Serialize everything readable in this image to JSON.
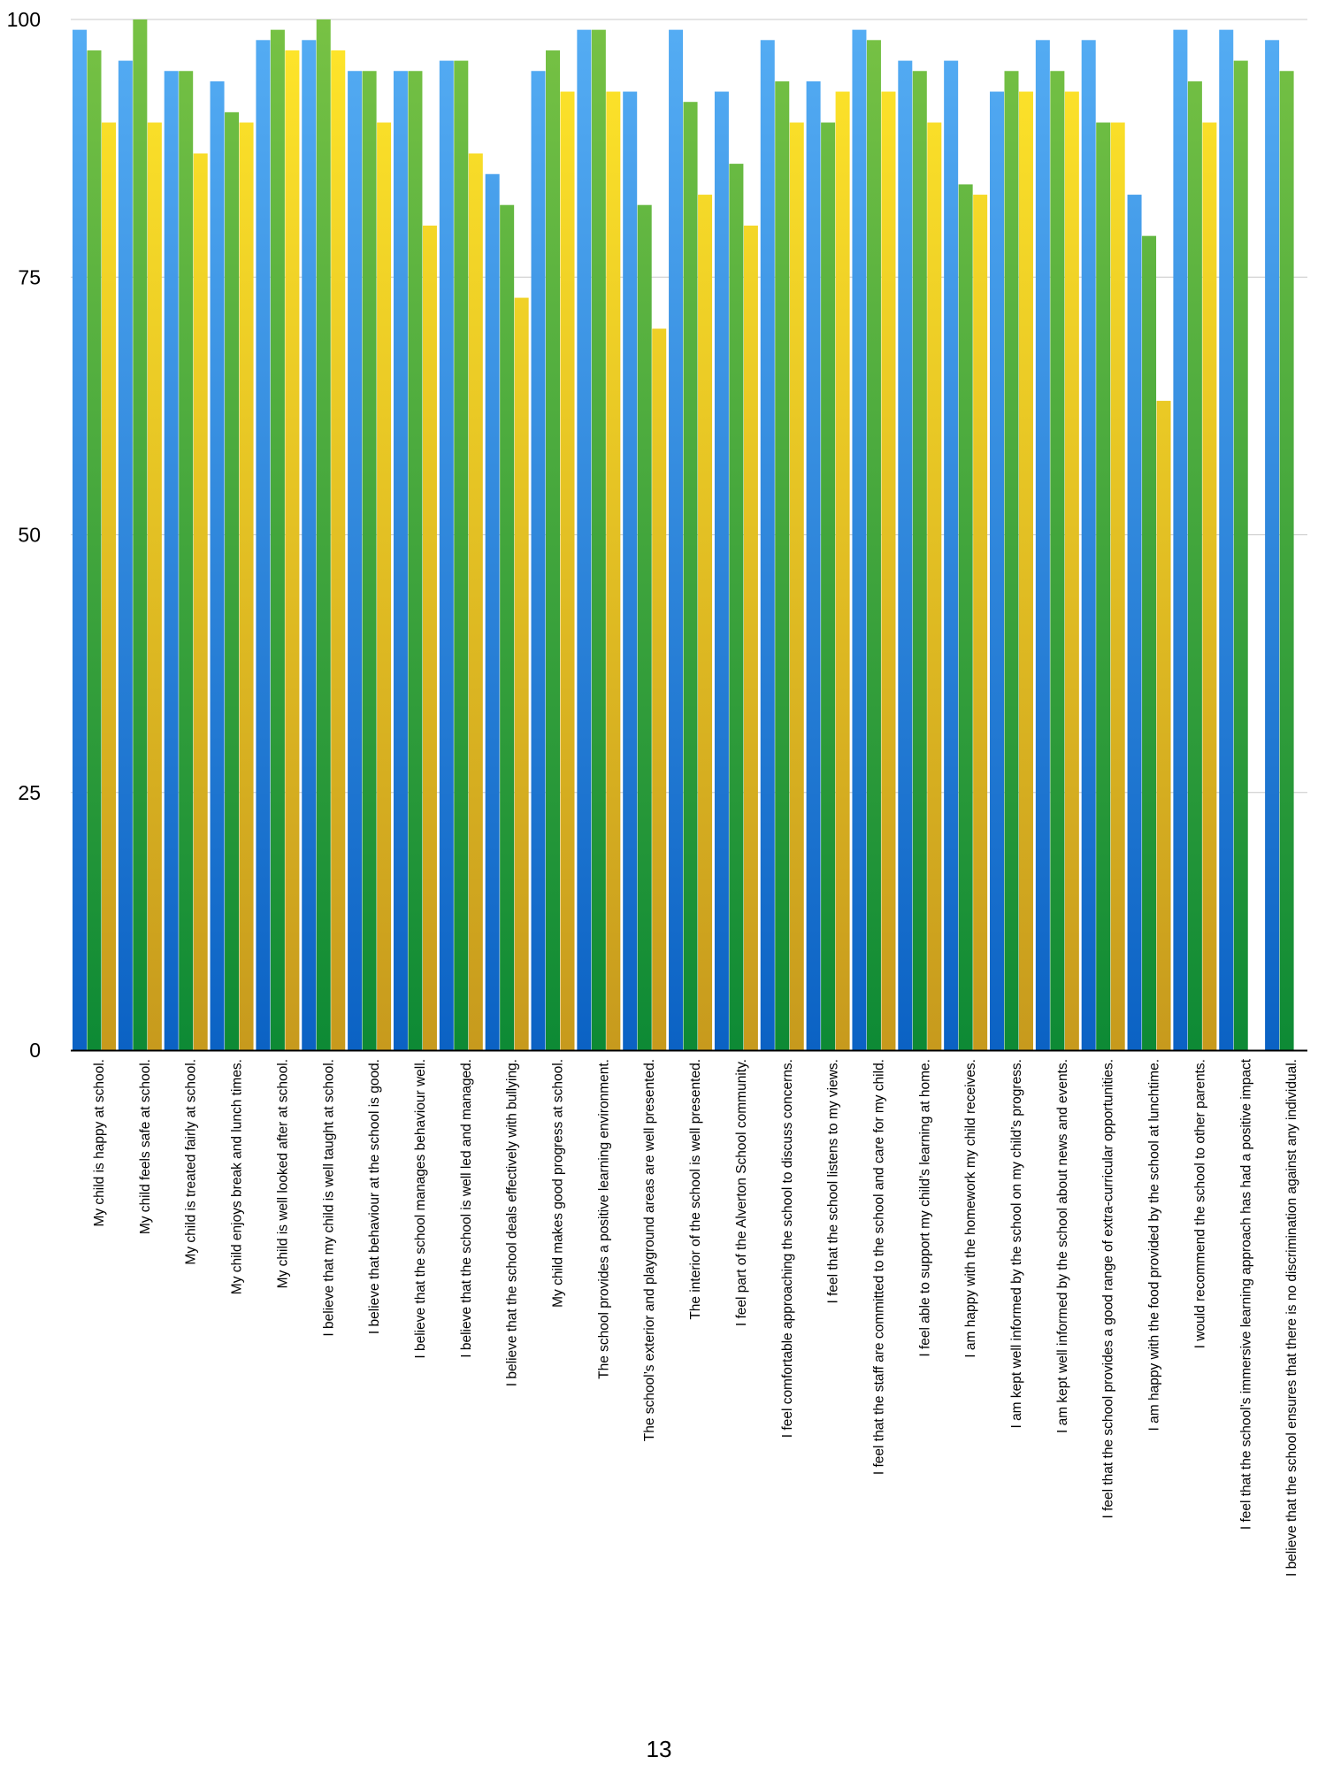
{
  "page": {
    "number": "13"
  },
  "chart_data": {
    "type": "bar",
    "title": "",
    "xlabel": "",
    "ylabel": "",
    "ylim": [
      0,
      100
    ],
    "yticks": [
      0,
      25,
      50,
      75,
      100
    ],
    "grid": true,
    "legend": "none",
    "categories": [
      "My child is happy at school.",
      "My child feels safe at school.",
      "My child is treated fairly at school.",
      "My child enjoys break and lunch times.",
      "My child is well looked after at school.",
      "I believe that my child is well taught at school.",
      "I believe that behaviour at the school is good.",
      "I believe that the school manages behaviour well.",
      "I believe that the school is well led and managed.",
      "I believe that the school deals effectively with bullying.",
      "My child makes good progress at school.",
      "The school provides a positive learning environment.",
      "The school’s exterior and playground areas are well presented.",
      "The interior of the school is well presented.",
      "I feel part of the Alverton School community.",
      "I feel comfortable approaching the school to discuss concerns.",
      "I feel that the school listens to my views.",
      "I feel that the staff are committed to the school and care for my child.",
      "I feel able to support my child’s learning at home.",
      "I am happy with the homework my child receives.",
      "I am kept well informed by the school on my child’s progress.",
      "I am kept well informed by the school about news and events.",
      "I feel that the school provides a good range of extra-curricular opportunities.",
      "I am happy with the food provided by the school at lunchtime.",
      "I would recommend the school to other parents.",
      "I feel that the school’s immersive learning approach has had a positive impact",
      "I believe that the school ensures that there is no discrimination against any individual."
    ],
    "series": [
      {
        "color_top": "#55adf4",
        "color_bottom": "#0b62c4",
        "values": [
          99,
          96,
          95,
          94,
          98,
          98,
          95,
          95,
          96,
          85,
          95,
          99,
          93,
          99,
          93,
          98,
          94,
          99,
          96,
          96,
          93,
          98,
          98,
          83,
          99,
          99,
          98
        ]
      },
      {
        "color_top": "#78c244",
        "color_bottom": "#0d8a35",
        "values": [
          97,
          100,
          95,
          91,
          99,
          100,
          95,
          95,
          96,
          82,
          97,
          99,
          82,
          92,
          86,
          94,
          90,
          98,
          95,
          84,
          95,
          95,
          90,
          79,
          94,
          96,
          95
        ]
      },
      {
        "color_top": "#ffe62a",
        "color_bottom": "#c79a1d",
        "values": [
          90,
          90,
          87,
          90,
          97,
          97,
          90,
          80,
          87,
          73,
          93,
          93,
          70,
          83,
          80,
          90,
          93,
          93,
          90,
          83,
          93,
          93,
          90,
          63,
          90,
          null,
          null
        ]
      }
    ]
  }
}
